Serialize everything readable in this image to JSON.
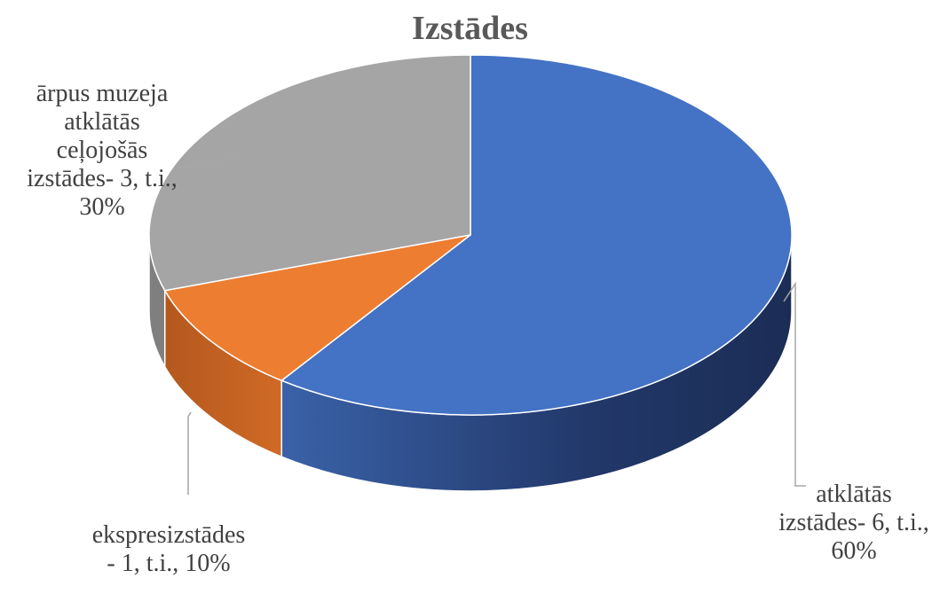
{
  "chart_data": {
    "type": "pie",
    "title": "Izstādes",
    "three_d": true,
    "slices": [
      {
        "category": "atklātās izstādes",
        "value": 6,
        "percent": 60,
        "label_text": "atklātās\nizstādes- 6, t.i.,",
        "percent_text": "60%",
        "color": "#4472C4",
        "side_color": "#2F4F8F"
      },
      {
        "category": "ekspresizstādes",
        "value": 1,
        "percent": 10,
        "label_text": "ekspresizstādes\n- 1, t.i., 10%",
        "percent_text": "",
        "color": "#ED7D31",
        "side_color": "#B85E22"
      },
      {
        "category": "ārpus muzeja atklātās ceļojošās izstādes",
        "value": 3,
        "percent": 30,
        "label_text": "ārpus muzeja\natklātās\nceļojošās\nizstādes- 3, t.i.,",
        "percent_text": "30%",
        "color": "#A5A5A5",
        "side_color": "#7F7F7F"
      }
    ],
    "legend": "none",
    "leader_line_color": "#A6A6A6"
  }
}
